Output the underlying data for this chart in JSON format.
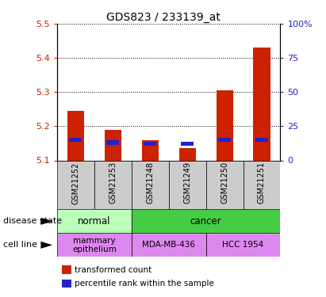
{
  "title": "GDS823 / 233139_at",
  "samples": [
    "GSM21252",
    "GSM21253",
    "GSM21248",
    "GSM21249",
    "GSM21250",
    "GSM21251"
  ],
  "transformed_counts": [
    5.245,
    5.19,
    5.16,
    5.135,
    5.305,
    5.43
  ],
  "percentile_ranks": [
    15,
    13,
    12,
    12,
    15,
    15
  ],
  "ylim_left": [
    5.1,
    5.5
  ],
  "yticks_left": [
    5.1,
    5.2,
    5.3,
    5.4,
    5.5
  ],
  "ylim_right": [
    0,
    100
  ],
  "yticks_right": [
    0,
    25,
    50,
    75,
    100
  ],
  "ytick_labels_right": [
    "0",
    "25",
    "50",
    "75",
    "100%"
  ],
  "bar_color": "#cc2200",
  "percentile_color": "#2222cc",
  "bar_width": 0.45,
  "base_value": 5.1,
  "ylabel_left_color": "#cc2200",
  "ylabel_right_color": "#2222cc",
  "bg_color": "#ffffff",
  "xtick_bg_color": "#cccccc",
  "normal_color": "#bbffbb",
  "cancer_color": "#44cc44",
  "cell_line_color": "#dd88ee",
  "disease_state_groups": [
    {
      "label": "normal",
      "start": 0,
      "end": 2
    },
    {
      "label": "cancer",
      "start": 2,
      "end": 6
    }
  ],
  "cell_line_groups": [
    {
      "label": "mammary\nepithelium",
      "start": 0,
      "end": 2
    },
    {
      "label": "MDA-MB-436",
      "start": 2,
      "end": 4
    },
    {
      "label": "HCC 1954",
      "start": 4,
      "end": 6
    }
  ],
  "legend_items": [
    {
      "label": "transformed count",
      "color": "#cc2200"
    },
    {
      "label": "percentile rank within the sample",
      "color": "#2222cc"
    }
  ]
}
